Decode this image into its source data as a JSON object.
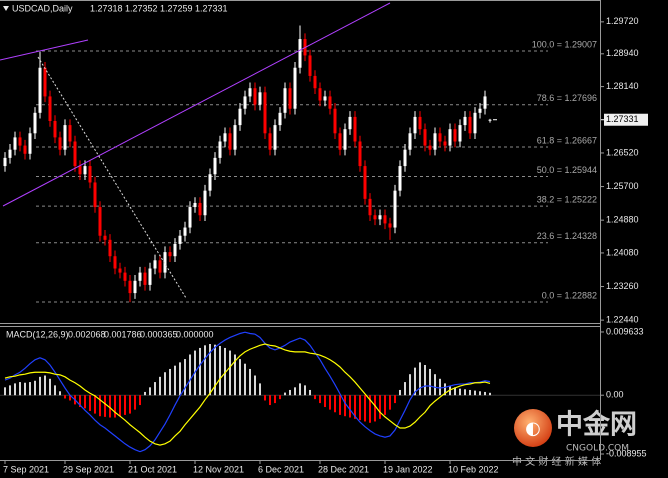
{
  "chart_data": {
    "type": "candlestick",
    "title": "USDCAD,Daily",
    "up_color": "#ffffff",
    "down_color": "#ff0000",
    "categories": [
      "7 Sep 2021",
      null,
      null,
      null,
      null,
      null,
      null,
      null,
      null,
      null,
      null,
      null,
      "29 Sep 2021",
      null,
      null,
      null,
      null,
      null,
      null,
      null,
      null,
      null,
      null,
      null,
      null,
      "21 Oct 2021",
      null,
      null,
      null,
      null,
      null,
      null,
      null,
      null,
      null,
      null,
      null,
      null,
      "12 Nov 2021",
      null,
      null,
      null,
      null,
      null,
      null,
      null,
      null,
      null,
      null,
      null,
      null,
      "6 Dec 2021",
      null,
      null,
      null,
      null,
      null,
      null,
      null,
      null,
      null,
      null,
      null,
      "28 Dec 2021",
      null,
      null,
      null,
      null,
      null,
      null,
      null,
      null,
      null,
      null,
      null,
      null,
      "19 Jan 2022",
      null,
      null,
      null,
      null,
      null,
      null,
      null,
      null,
      null,
      null,
      null,
      null,
      "10 Feb 2022",
      null,
      null,
      null,
      null,
      null,
      null,
      null,
      null
    ],
    "open": [
      1.262,
      1.264,
      1.266,
      1.269,
      1.267,
      1.265,
      1.27,
      1.275,
      1.286,
      1.279,
      1.273,
      1.269,
      1.266,
      1.272,
      1.268,
      1.262,
      1.26,
      1.262,
      1.258,
      1.252,
      1.245,
      1.244,
      1.24,
      1.237,
      1.236,
      1.234,
      1.231,
      1.234,
      1.236,
      1.233,
      1.237,
      1.239,
      1.236,
      1.241,
      1.24,
      1.243,
      1.245,
      1.247,
      1.252,
      1.253,
      1.25,
      1.256,
      1.26,
      1.264,
      1.268,
      1.27,
      1.266,
      1.272,
      1.276,
      1.279,
      1.281,
      1.277,
      1.28,
      1.27,
      1.266,
      1.272,
      1.275,
      1.281,
      1.276,
      1.286,
      1.293,
      1.289,
      1.284,
      1.281,
      1.278,
      1.279,
      1.276,
      1.27,
      1.266,
      1.271,
      1.274,
      1.268,
      1.262,
      1.254,
      1.25,
      1.249,
      1.25,
      1.248,
      1.247,
      1.256,
      1.262,
      1.266,
      1.27,
      1.274,
      1.271,
      1.267,
      1.266,
      1.27,
      1.268,
      1.267,
      1.271,
      1.268,
      1.272,
      1.274,
      1.27,
      1.275,
      1.276,
      1.27318
    ],
    "high": [
      1.2654,
      1.2674,
      1.2704,
      1.2704,
      1.2684,
      1.2714,
      1.2764,
      1.2899,
      1.2874,
      1.2804,
      1.2744,
      1.2704,
      1.2734,
      1.2734,
      1.2694,
      1.2634,
      1.2634,
      1.2634,
      1.2594,
      1.2534,
      1.2464,
      1.2454,
      1.2414,
      1.2384,
      1.2374,
      1.2354,
      1.2354,
      1.2374,
      1.2374,
      1.2384,
      1.2404,
      1.2404,
      1.2424,
      1.2424,
      1.2444,
      1.2464,
      1.2484,
      1.2534,
      1.2544,
      1.2544,
      1.2574,
      1.2614,
      1.2654,
      1.2694,
      1.2714,
      1.2714,
      1.2734,
      1.2774,
      1.2804,
      1.2824,
      1.2824,
      1.2814,
      1.2814,
      1.2714,
      1.2734,
      1.2764,
      1.2824,
      1.2824,
      1.2874,
      1.2963,
      1.2944,
      1.2904,
      1.2854,
      1.2824,
      1.2804,
      1.2804,
      1.2774,
      1.2714,
      1.2724,
      1.2754,
      1.2754,
      1.2694,
      1.2634,
      1.2554,
      1.2514,
      1.2514,
      1.2514,
      1.2494,
      1.2574,
      1.2634,
      1.2674,
      1.2714,
      1.2754,
      1.2754,
      1.2724,
      1.2684,
      1.2714,
      1.2714,
      1.2694,
      1.2724,
      1.2724,
      1.2734,
      1.2754,
      1.2754,
      1.2764,
      1.2774,
      1.2804,
      1.27352
    ],
    "low": [
      1.2606,
      1.2626,
      1.2646,
      1.2656,
      1.2636,
      1.2636,
      1.2686,
      1.2736,
      1.2776,
      1.2716,
      1.2676,
      1.2646,
      1.2646,
      1.2666,
      1.2606,
      1.2586,
      1.2586,
      1.2566,
      1.2506,
      1.2436,
      1.2426,
      1.2386,
      1.2356,
      1.2346,
      1.2326,
      1.2288,
      1.2296,
      1.2326,
      1.2316,
      1.2316,
      1.2356,
      1.2346,
      1.2346,
      1.2386,
      1.2386,
      1.2416,
      1.2436,
      1.2456,
      1.2506,
      1.2486,
      1.2486,
      1.2546,
      1.2586,
      1.2626,
      1.2666,
      1.2646,
      1.2646,
      1.2706,
      1.2746,
      1.2776,
      1.2756,
      1.2756,
      1.2686,
      1.2646,
      1.2646,
      1.2706,
      1.2736,
      1.2746,
      1.2746,
      1.2846,
      1.2876,
      1.2826,
      1.2796,
      1.2766,
      1.2766,
      1.2746,
      1.2686,
      1.2646,
      1.2646,
      1.2696,
      1.2666,
      1.2606,
      1.2526,
      1.2486,
      1.2476,
      1.2476,
      1.2466,
      1.244,
      1.2456,
      1.2546,
      1.2606,
      1.2646,
      1.2686,
      1.2696,
      1.2656,
      1.2646,
      1.2646,
      1.2666,
      1.2656,
      1.2656,
      1.2666,
      1.2666,
      1.2706,
      1.2686,
      1.2686,
      1.2736,
      1.2746,
      1.27259
    ],
    "close": [
      1.264,
      1.266,
      1.269,
      1.267,
      1.265,
      1.27,
      1.275,
      1.286,
      1.279,
      1.273,
      1.269,
      1.266,
      1.272,
      1.268,
      1.262,
      1.26,
      1.262,
      1.258,
      1.252,
      1.245,
      1.244,
      1.24,
      1.237,
      1.236,
      1.234,
      1.231,
      1.234,
      1.236,
      1.233,
      1.237,
      1.239,
      1.236,
      1.241,
      1.24,
      1.243,
      1.245,
      1.247,
      1.252,
      1.253,
      1.25,
      1.256,
      1.26,
      1.264,
      1.268,
      1.27,
      1.266,
      1.272,
      1.276,
      1.279,
      1.281,
      1.277,
      1.28,
      1.27,
      1.266,
      1.272,
      1.275,
      1.281,
      1.276,
      1.286,
      1.293,
      1.289,
      1.284,
      1.281,
      1.278,
      1.279,
      1.276,
      1.27,
      1.266,
      1.271,
      1.274,
      1.268,
      1.262,
      1.254,
      1.25,
      1.249,
      1.25,
      1.248,
      1.247,
      1.256,
      1.262,
      1.266,
      1.27,
      1.274,
      1.271,
      1.267,
      1.266,
      1.27,
      1.268,
      1.267,
      1.271,
      1.268,
      1.272,
      1.274,
      1.27,
      1.275,
      1.276,
      1.279,
      1.27331
    ],
    "ylim": [
      1.2237,
      1.3018
    ],
    "yticks": [
      {
        "value": 1.2972,
        "label": "1.29720"
      },
      {
        "value": 1.2894,
        "label": "1.28940"
      },
      {
        "value": 1.2814,
        "label": "1.28140"
      },
      {
        "value": 1.2652,
        "label": "1.26520"
      },
      {
        "value": 1.257,
        "label": "1.25700"
      },
      {
        "value": 1.2488,
        "label": "1.24880"
      },
      {
        "value": 1.2408,
        "label": "1.24080"
      },
      {
        "value": 1.2326,
        "label": "1.23260"
      },
      {
        "value": 1.2244,
        "label": "1.22440"
      }
    ],
    "fib_levels": [
      {
        "value": 1.29007,
        "label": "100.0 = 1.29007"
      },
      {
        "value": 1.27696,
        "label": "78.6 = 1.27696"
      },
      {
        "value": 1.26667,
        "label": "61.8 = 1.26667"
      },
      {
        "value": 1.25944,
        "label": "50.0 = 1.25944"
      },
      {
        "value": 1.25222,
        "label": "38.2 = 1.25222"
      },
      {
        "value": 1.24328,
        "label": "23.6 = 1.24328"
      },
      {
        "value": 1.22882,
        "label": "0.0 = 1.22882"
      }
    ],
    "macd": {
      "title": "MACD(12,26,9)",
      "ylim": [
        -0.00987,
        0.01039
      ],
      "yticks": [
        0.009633,
        {
          "value": 0,
          "label": "0.00"
        },
        -0.008955
      ],
      "zero_level": {
        "value": 0,
        "label": "0.000000"
      },
      "histogram": {
        "color": "#d8d8d8",
        "negative_color": "#ff0000",
        "values": [
          0.0012,
          0.0015,
          0.0018,
          0.002,
          0.0019,
          0.002,
          0.0022,
          0.0028,
          0.003,
          0.0025,
          0.0015,
          0.0006,
          -0.0005,
          -0.0008,
          -0.0014,
          -0.0018,
          -0.002,
          -0.0024,
          -0.0028,
          -0.0032,
          -0.0033,
          -0.0034,
          -0.0034,
          -0.0032,
          -0.003,
          -0.0028,
          -0.0022,
          -0.0015,
          0.0005,
          0.0012,
          0.002,
          0.0028,
          0.0035,
          0.004,
          0.0045,
          0.005,
          0.0055,
          0.0062,
          0.0068,
          0.0072,
          0.0076,
          0.0078,
          0.0077,
          0.0075,
          0.0072,
          0.0068,
          0.0062,
          0.0055,
          0.0048,
          0.004,
          0.003,
          0.0018,
          -0.0008,
          -0.0015,
          -0.0012,
          -0.0006,
          0.0004,
          0.0008,
          0.0012,
          0.0018,
          0.0015,
          0.0008,
          -0.0006,
          -0.0012,
          -0.0018,
          -0.0022,
          -0.0026,
          -0.003,
          -0.0032,
          -0.0034,
          -0.0036,
          -0.0038,
          -0.004,
          -0.0042,
          -0.004,
          -0.0036,
          -0.003,
          -0.0022,
          -0.0012,
          0.0008,
          0.002,
          0.0032,
          0.0042,
          0.005,
          0.0046,
          0.004,
          0.0032,
          0.0025,
          0.0018,
          0.0014,
          0.0012,
          0.001,
          0.0009,
          0.0008,
          0.0007,
          0.0006,
          0.0005,
          0.000365
        ]
      },
      "series": [
        {
          "color": "#2040ff",
          "values": [
            0.0023,
            0.0026,
            0.0031,
            0.0035,
            0.0041,
            0.0048,
            0.0054,
            0.0057,
            0.0054,
            0.0046,
            0.0035,
            0.0023,
            0.0011,
            0.0,
            -0.0007,
            -0.0015,
            -0.0023,
            -0.003,
            -0.0038,
            -0.0045,
            -0.005,
            -0.0056,
            -0.0062,
            -0.0068,
            -0.0074,
            -0.0079,
            -0.0083,
            -0.0086,
            -0.0083,
            -0.0077,
            -0.0068,
            -0.0056,
            -0.0044,
            -0.003,
            -0.0015,
            -0.0001,
            0.0011,
            0.0023,
            0.0035,
            0.0046,
            0.0056,
            0.0065,
            0.0073,
            0.0079,
            0.0084,
            0.0088,
            0.0091,
            0.0094,
            0.0096,
            0.0094,
            0.0093,
            0.0088,
            0.0079,
            0.0072,
            0.0069,
            0.0072,
            0.0076,
            0.0081,
            0.0084,
            0.0087,
            0.0084,
            0.0076,
            0.0065,
            0.0054,
            0.0041,
            0.0029,
            0.0016,
            0.0002,
            -0.0012,
            -0.0022,
            -0.0032,
            -0.0041,
            -0.0048,
            -0.0054,
            -0.0059,
            -0.0062,
            -0.0064,
            -0.0062,
            -0.0053,
            -0.0038,
            -0.0023,
            -0.0007,
            0.0005,
            0.0011,
            0.0014,
            0.0014,
            0.0012,
            0.0011,
            0.0012,
            0.0014,
            0.0016,
            0.0017,
            0.0017,
            0.0019,
            0.0019,
            0.002,
            0.0022,
            0.002068
          ]
        },
        {
          "color": "#ffff00",
          "values": [
            0.0026,
            0.0028,
            0.0029,
            0.0031,
            0.0032,
            0.0034,
            0.0035,
            0.0035,
            0.0035,
            0.0034,
            0.0032,
            0.0031,
            0.0028,
            0.0023,
            0.0019,
            0.0014,
            0.0008,
            0.0003,
            -0.0001,
            -0.0007,
            -0.0013,
            -0.0019,
            -0.0026,
            -0.0032,
            -0.0038,
            -0.0045,
            -0.0051,
            -0.0057,
            -0.0064,
            -0.007,
            -0.0074,
            -0.0076,
            -0.0074,
            -0.007,
            -0.0062,
            -0.0055,
            -0.0045,
            -0.0036,
            -0.0027,
            -0.0018,
            -0.0007,
            0.0003,
            0.0014,
            0.0025,
            0.0034,
            0.0043,
            0.0052,
            0.006,
            0.0066,
            0.007,
            0.0073,
            0.0076,
            0.0078,
            0.0076,
            0.0075,
            0.0072,
            0.0069,
            0.0067,
            0.0066,
            0.0066,
            0.0066,
            0.0064,
            0.0063,
            0.0061,
            0.0058,
            0.0054,
            0.0049,
            0.0043,
            0.0035,
            0.0028,
            0.002,
            0.0011,
            0.0002,
            -0.0007,
            -0.0016,
            -0.0026,
            -0.0033,
            -0.0039,
            -0.0045,
            -0.005,
            -0.005,
            -0.0047,
            -0.0041,
            -0.0033,
            -0.0026,
            -0.0016,
            -0.0009,
            -0.0003,
            0.0003,
            0.0008,
            0.0011,
            0.0014,
            0.0016,
            0.0017,
            0.0019,
            0.0019,
            0.002,
            0.001786
          ]
        }
      ]
    },
    "watermark": {
      "name": "中金网",
      "domain": "CNGOLD.COM",
      "tagline": "中 文 财 经 新 媒 体"
    }
  }
}
